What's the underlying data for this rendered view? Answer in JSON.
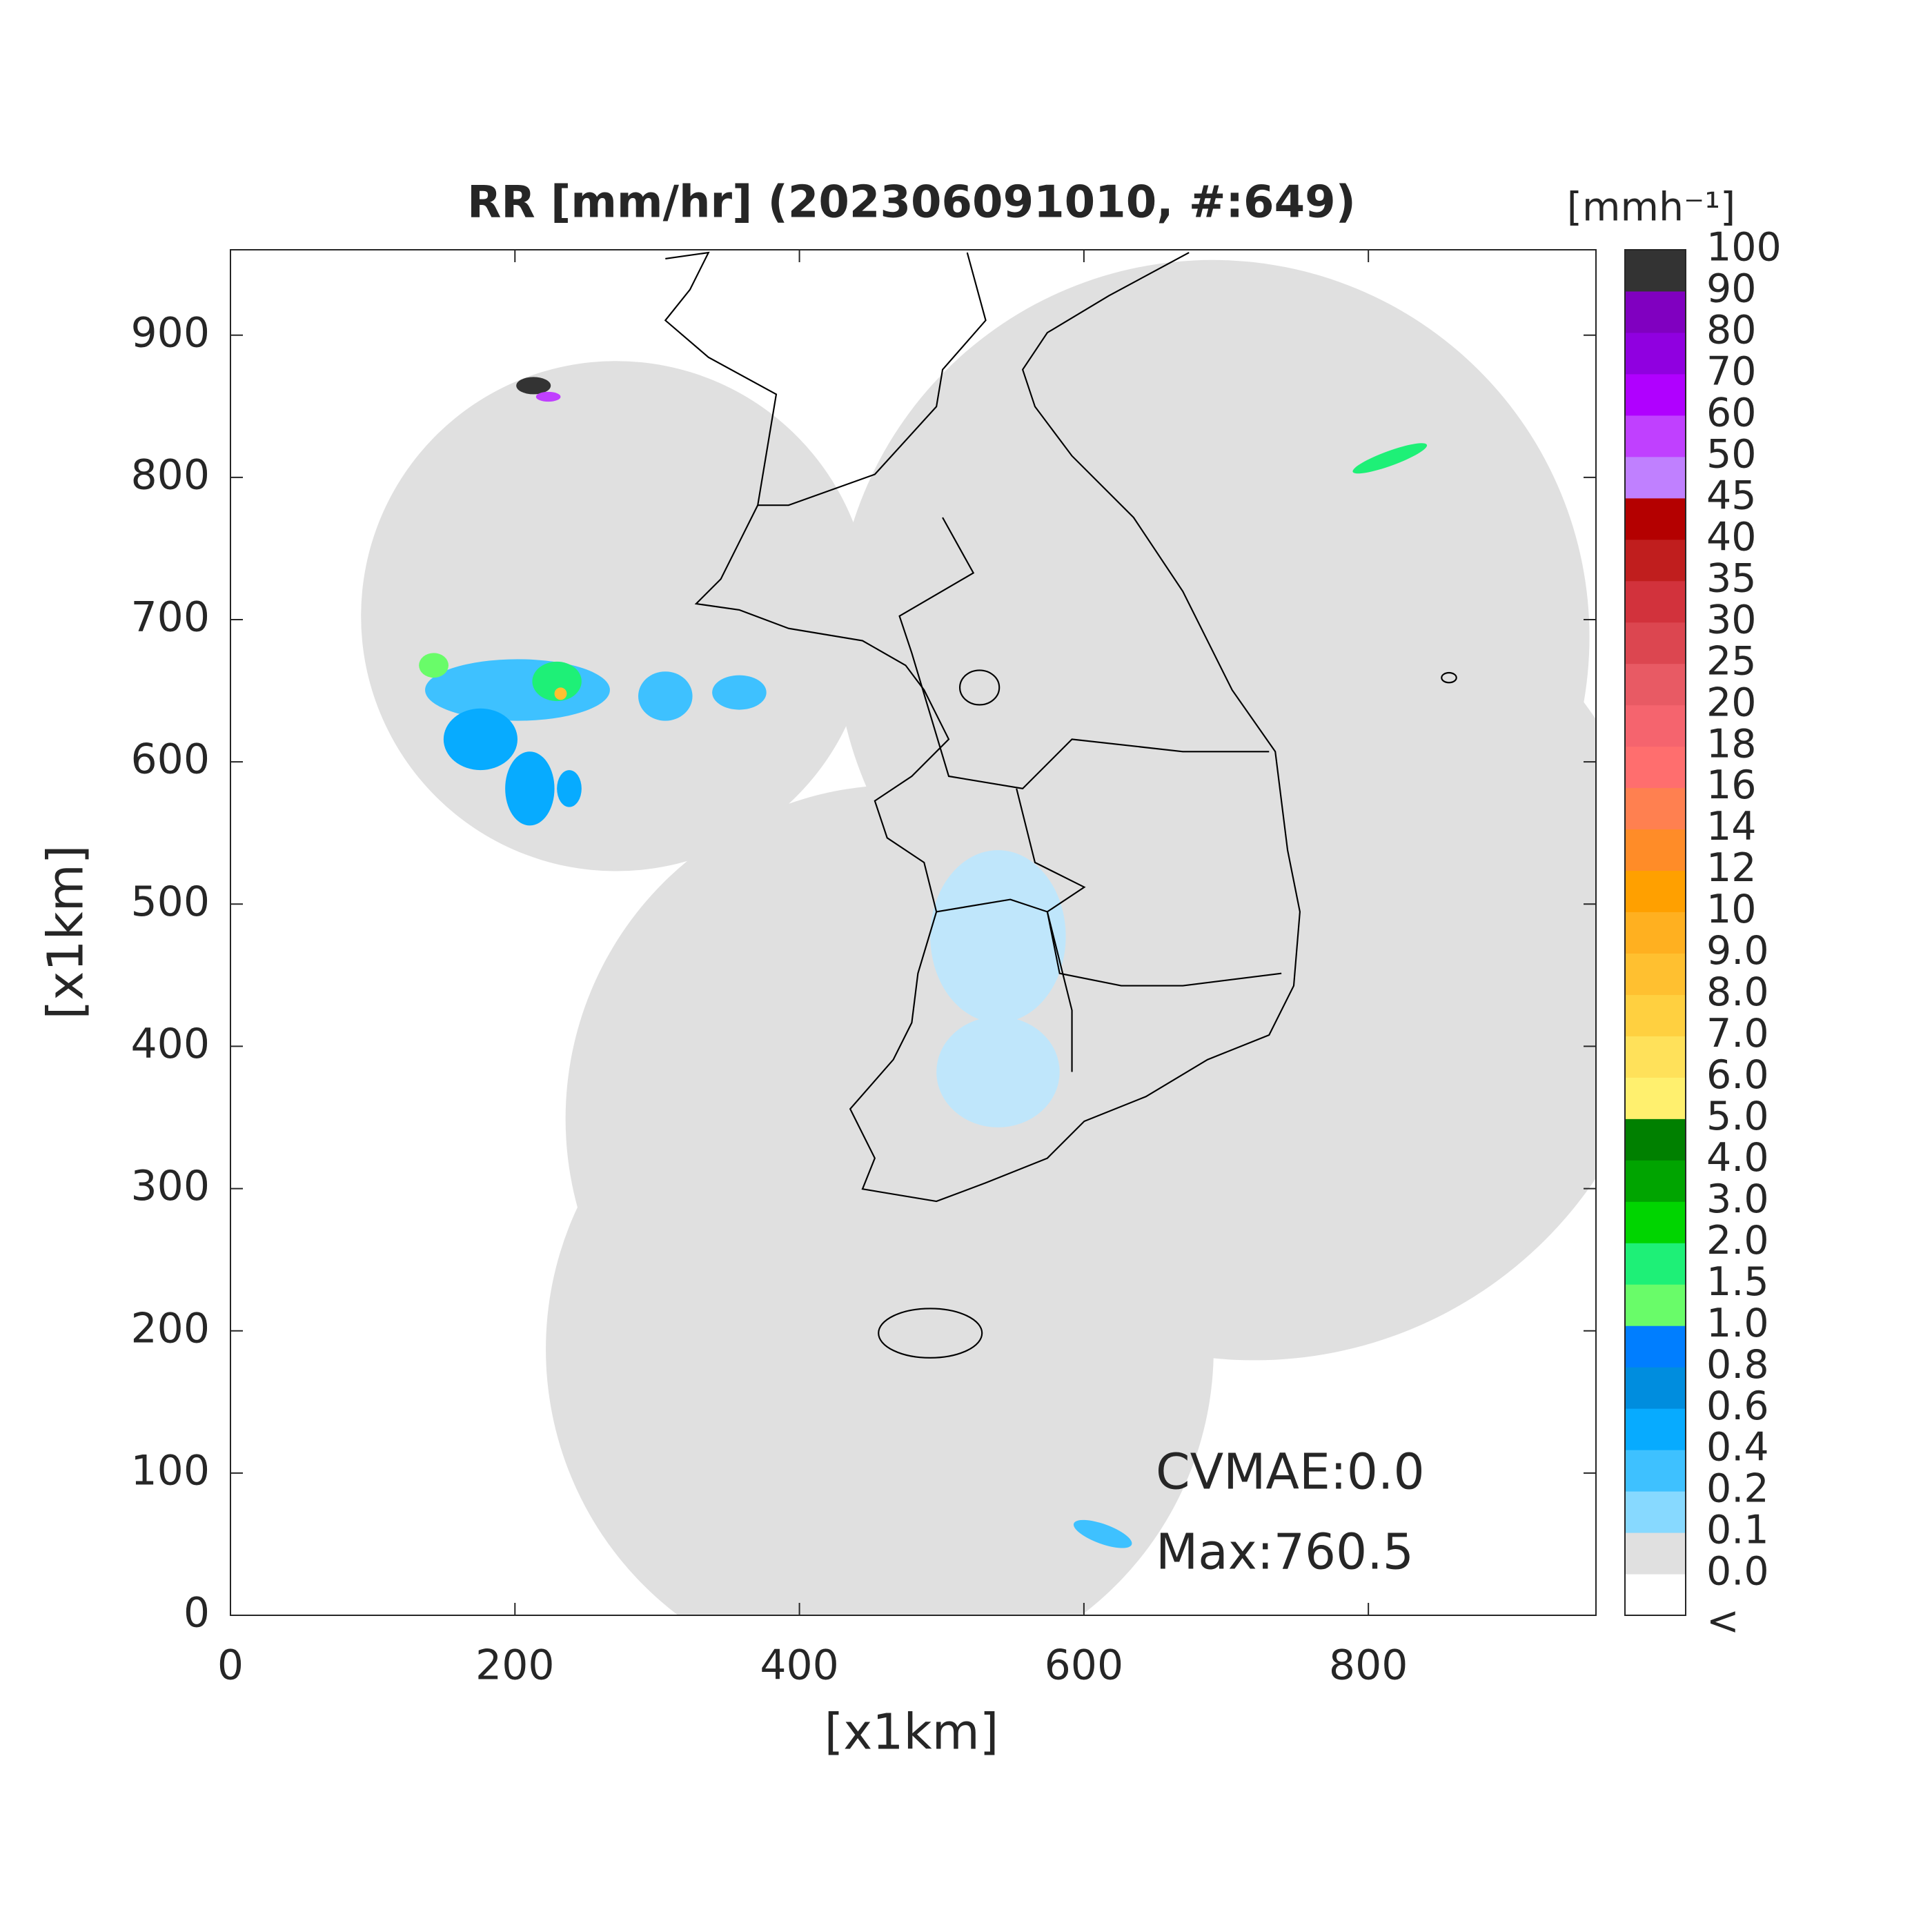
{
  "chart_data": {
    "type": "map",
    "title": "RR [mm/hr] (202306091010, #:649)",
    "xlabel": "[x1km]",
    "ylabel": "[x1km]",
    "xlim": [
      0,
      960
    ],
    "ylim": [
      0,
      960
    ],
    "xticks": [
      0,
      200,
      400,
      600,
      800
    ],
    "yticks": [
      0,
      100,
      200,
      300,
      400,
      500,
      600,
      700,
      800,
      900
    ],
    "annotations": [
      "CVMAE:0.0",
      "Max:760.5"
    ],
    "colorbar": {
      "title": "[mmh⁻¹]",
      "labels": [
        "<",
        "0.0",
        "0.1",
        "0.2",
        "0.4",
        "0.6",
        "0.8",
        "1.0",
        "1.5",
        "2.0",
        "3.0",
        "4.0",
        "5.0",
        "6.0",
        "7.0",
        "8.0",
        "9.0",
        "10",
        "12",
        "14",
        "16",
        "18",
        "20",
        "25",
        "30",
        "35",
        "40",
        "45",
        "50",
        "60",
        "70",
        "80",
        "90",
        "100"
      ],
      "colors": [
        "#ffffff",
        "#e0e0e0",
        "#87d9ff",
        "#3ec1ff",
        "#07abff",
        "#008dde",
        "#007eff",
        "#69fc69",
        "#1ef077",
        "#00d500",
        "#00a400",
        "#008000",
        "#fff06e",
        "#ffe15a",
        "#ffd040",
        "#ffc030",
        "#ffb020",
        "#ffa000",
        "#ff8c28",
        "#ff8050",
        "#ff6e6e",
        "#f5646e",
        "#e85a64",
        "#dc4650",
        "#d2323c",
        "#c01e1e",
        "#b40000",
        "#c080ff",
        "#c040ff",
        "#b000ff",
        "#9000e0",
        "#8000c0",
        "#333333"
      ]
    }
  }
}
